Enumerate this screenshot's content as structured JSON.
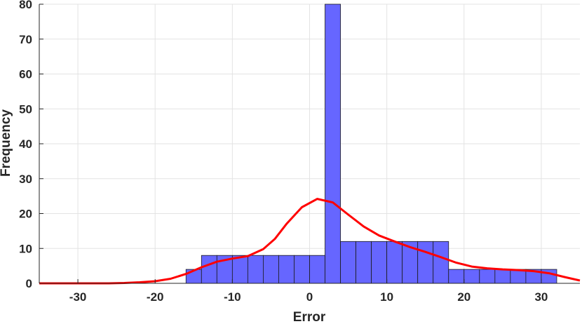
{
  "chart_data": {
    "type": "bar",
    "xlabel": "Error",
    "ylabel": "Frequency",
    "xlim": [
      -35,
      35
    ],
    "ylim": [
      0,
      80
    ],
    "xticks": [
      -30,
      -20,
      -10,
      0,
      10,
      20,
      30
    ],
    "yticks": [
      0,
      10,
      20,
      30,
      40,
      50,
      60,
      70,
      80
    ],
    "grid": true,
    "histogram": {
      "bin_edges": [
        -16,
        -14,
        -12,
        -10,
        -8,
        -6,
        -4,
        -2,
        0,
        2,
        4,
        6,
        8,
        10,
        12,
        14,
        16,
        18,
        20,
        22,
        24,
        26,
        28,
        30,
        32
      ],
      "counts": [
        4,
        8,
        8,
        8,
        8,
        8,
        8,
        8,
        8,
        80,
        12,
        12,
        12,
        12,
        12,
        12,
        12,
        4,
        4,
        4,
        4,
        4,
        4,
        4
      ],
      "color": "#6666ff"
    },
    "curve": {
      "color": "#ff0000",
      "x": [
        -35,
        -32,
        -29,
        -26,
        -24,
        -22,
        -20,
        -18,
        -16,
        -14,
        -12,
        -10,
        -8,
        -6,
        -4.5,
        -3,
        -1,
        1,
        3,
        5,
        7,
        9,
        11,
        13,
        15,
        17,
        19,
        21,
        23,
        25,
        27,
        29,
        31,
        33,
        35
      ],
      "y": [
        0,
        0,
        0,
        0,
        0.1,
        0.3,
        0.6,
        1.3,
        2.7,
        4.6,
        6.2,
        7.1,
        7.8,
        9.8,
        12.7,
        17,
        21.8,
        24.2,
        23.2,
        19.7,
        16.3,
        13.7,
        12,
        10.4,
        9,
        7.5,
        5.9,
        4.8,
        4.3,
        4,
        3.8,
        3.5,
        2.9,
        1.8,
        0.8
      ]
    }
  }
}
